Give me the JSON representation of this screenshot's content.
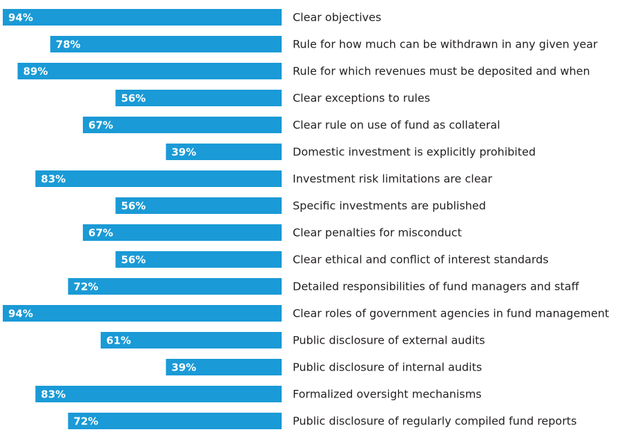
{
  "chart_data": {
    "type": "bar",
    "orientation": "horizontal",
    "color": "#1a9ad6",
    "categories": [
      "Clear objectives",
      "Rule for how much can be withdrawn in any given year",
      "Rule for which revenues must be deposited and when",
      "Clear exceptions to rules",
      "Clear rule on use of fund as collateral",
      "Domestic investment is explicitly prohibited",
      "Investment risk limitations are clear",
      "Specific investments are published",
      "Clear penalties for misconduct",
      "Clear ethical and conflict of interest standards",
      "Detailed responsibilities of fund managers and staff",
      "Clear roles of government agencies in fund management",
      "Public disclosure of external audits",
      "Public disclosure of internal audits",
      "Formalized oversight mechanisms",
      "Public disclosure of regularly compiled fund reports"
    ],
    "values": [
      94,
      78,
      89,
      56,
      67,
      39,
      83,
      56,
      67,
      56,
      72,
      94,
      61,
      39,
      83,
      72
    ],
    "value_labels": [
      "94%",
      "78%",
      "89%",
      "56%",
      "67%",
      "39%",
      "83%",
      "56%",
      "67%",
      "56%",
      "72%",
      "94%",
      "61%",
      "39%",
      "83%",
      "72%"
    ]
  }
}
